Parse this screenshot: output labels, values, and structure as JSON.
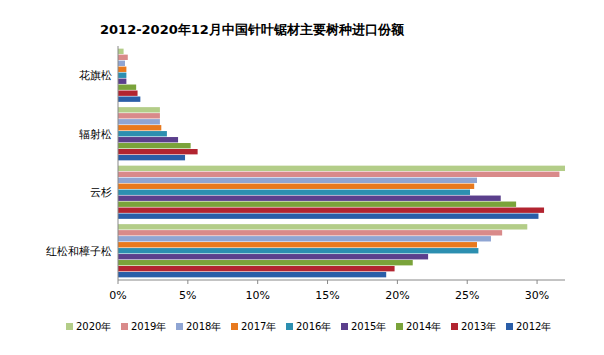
{
  "chart_data": {
    "type": "bar",
    "orientation": "horizontal",
    "title": "2012-2020年12月中国针叶锯材主要树种进口份额",
    "categories": [
      "花旗松",
      "辐射松",
      "云杉",
      "红松和樟子松"
    ],
    "series": [
      {
        "name": "2020年",
        "color": "#b3cd88",
        "values": [
          0.4,
          3.0,
          32.0,
          29.3
        ]
      },
      {
        "name": "2019年",
        "color": "#d98a8a",
        "values": [
          0.7,
          3.0,
          31.6,
          27.5
        ]
      },
      {
        "name": "2018年",
        "color": "#8fa5d3",
        "values": [
          0.5,
          3.0,
          25.7,
          26.7
        ]
      },
      {
        "name": "2017年",
        "color": "#e8791e",
        "values": [
          0.6,
          3.1,
          25.5,
          25.7
        ]
      },
      {
        "name": "2016年",
        "color": "#2c8fb0",
        "values": [
          0.6,
          3.5,
          25.2,
          25.8
        ]
      },
      {
        "name": "2015年",
        "color": "#5b3f8c",
        "values": [
          0.6,
          4.3,
          27.4,
          22.2
        ]
      },
      {
        "name": "2014年",
        "color": "#7aa33a",
        "values": [
          1.3,
          5.2,
          28.5,
          21.1
        ]
      },
      {
        "name": "2013年",
        "color": "#b22430",
        "values": [
          1.4,
          5.7,
          30.5,
          19.8
        ]
      },
      {
        "name": "2012年",
        "color": "#2a5ea8",
        "values": [
          1.6,
          4.8,
          30.1,
          19.2
        ]
      }
    ],
    "xlim": [
      0,
      32
    ],
    "xticks": [
      {
        "value": 0,
        "label": "0%"
      },
      {
        "value": 5,
        "label": "5%"
      },
      {
        "value": 10,
        "label": "10%"
      },
      {
        "value": 15,
        "label": "15%"
      },
      {
        "value": 20,
        "label": "20%"
      },
      {
        "value": 25,
        "label": "25%"
      },
      {
        "value": 30,
        "label": "30%"
      }
    ],
    "legend": "bottom",
    "grid": false
  }
}
